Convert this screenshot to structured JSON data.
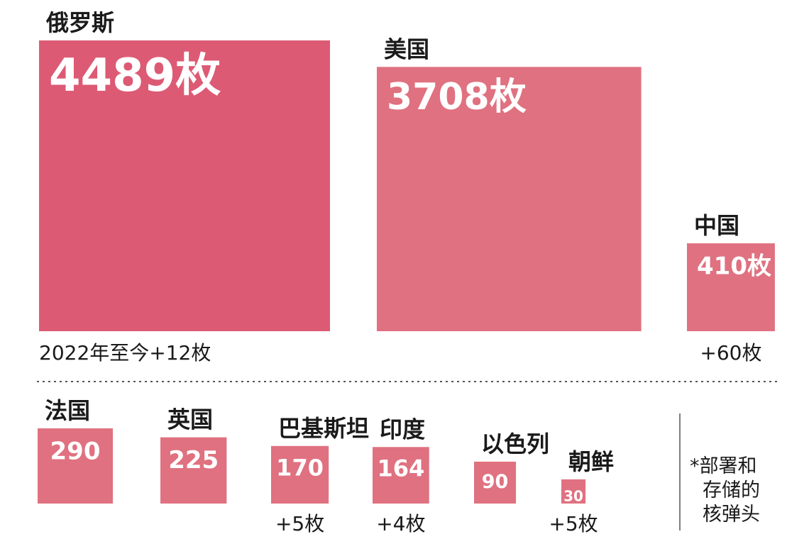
{
  "chart_data": {
    "type": "bar",
    "title": "",
    "footnote_lines": [
      "*部署和",
      "存储的",
      "核弹头"
    ],
    "items": [
      {
        "name": "俄罗斯",
        "value": 4489,
        "label": "4489枚",
        "note": "2022年至今+12枚"
      },
      {
        "name": "美国",
        "value": 3708,
        "label": "3708枚",
        "note": ""
      },
      {
        "name": "中国",
        "value": 410,
        "label": "410枚",
        "note": "+60枚"
      },
      {
        "name": "法国",
        "value": 290,
        "label": "290",
        "note": ""
      },
      {
        "name": "英国",
        "value": 225,
        "label": "225",
        "note": ""
      },
      {
        "name": "巴基斯坦",
        "value": 170,
        "label": "170",
        "note": "+5枚"
      },
      {
        "name": "印度",
        "value": 164,
        "label": "164",
        "note": "+4枚"
      },
      {
        "name": "以色列",
        "value": 90,
        "label": "90",
        "note": ""
      },
      {
        "name": "朝鲜",
        "value": 30,
        "label": "30",
        "note": "+5枚"
      }
    ]
  }
}
